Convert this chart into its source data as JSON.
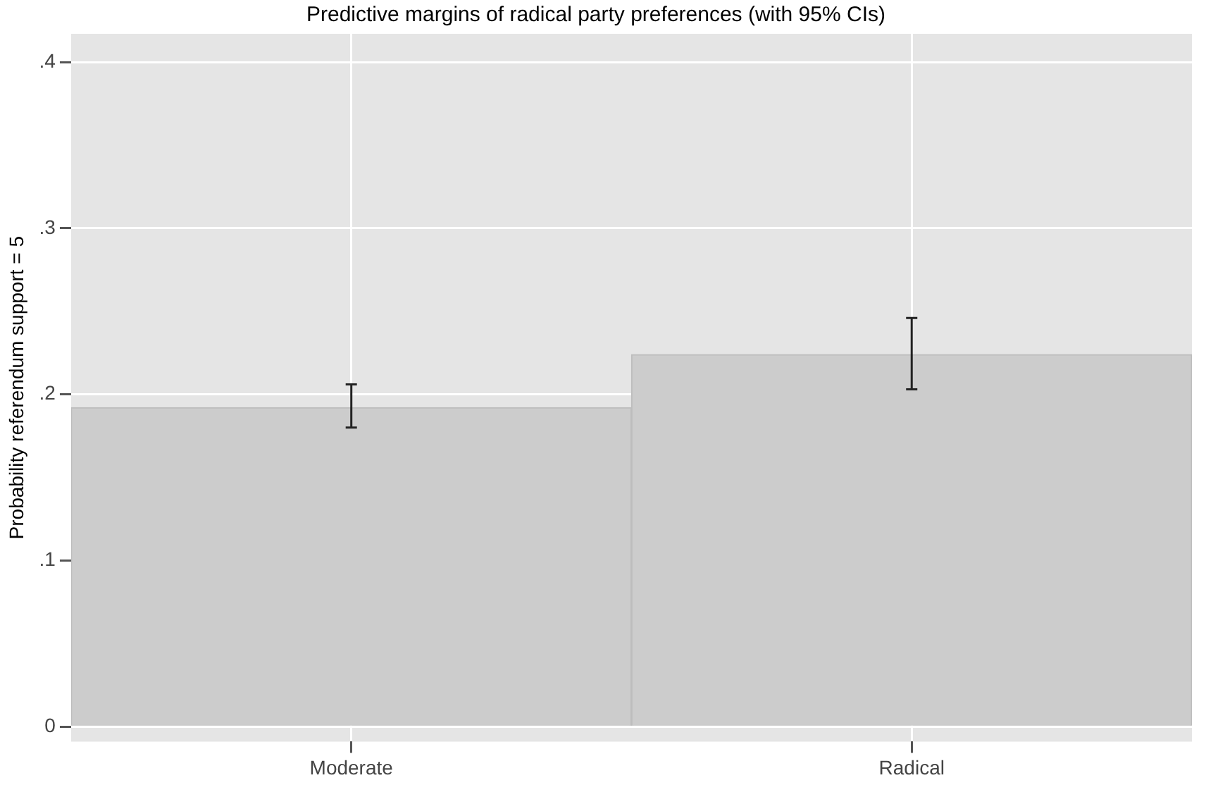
{
  "chart_data": {
    "type": "bar",
    "title": "Predictive margins of radical party preferences (with 95% CIs)",
    "ylabel": "Probability referendum support = 5",
    "categories": [
      "Moderate",
      "Radical"
    ],
    "values": [
      0.192,
      0.224
    ],
    "errors": [
      [
        0.18,
        0.206
      ],
      [
        0.203,
        0.246
      ]
    ],
    "color": "#cccccc",
    "ylim": [
      -0.009,
      0.417
    ],
    "yticks": [
      {
        "value": 0,
        "label": "0"
      },
      {
        "value": 0.1,
        "label": ".1"
      },
      {
        "value": 0.2,
        "label": ".2"
      },
      {
        "value": 0.3,
        "label": ".3"
      },
      {
        "value": 0.4,
        "label": ".4"
      }
    ],
    "grid": true,
    "legend": false
  }
}
